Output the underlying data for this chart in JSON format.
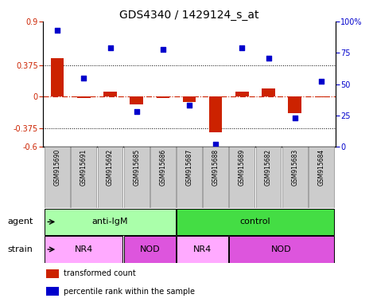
{
  "title": "GDS4340 / 1429124_s_at",
  "samples": [
    "GSM915690",
    "GSM915691",
    "GSM915692",
    "GSM915685",
    "GSM915686",
    "GSM915687",
    "GSM915688",
    "GSM915689",
    "GSM915682",
    "GSM915683",
    "GSM915684"
  ],
  "transformed_count": [
    0.46,
    -0.02,
    0.06,
    -0.09,
    -0.02,
    -0.06,
    -0.43,
    0.06,
    0.1,
    -0.2,
    -0.01
  ],
  "percentile_rank": [
    93,
    55,
    79,
    28,
    78,
    33,
    2,
    79,
    71,
    23,
    52
  ],
  "ylim_left": [
    -0.6,
    0.9
  ],
  "ylim_right": [
    0,
    100
  ],
  "yticks_left": [
    -0.6,
    -0.375,
    0,
    0.375,
    0.9
  ],
  "yticks_right": [
    0,
    25,
    50,
    75,
    100
  ],
  "hlines": [
    0.375,
    -0.375
  ],
  "bar_color": "#CC2200",
  "scatter_color": "#0000CC",
  "zero_line_color": "#CC2200",
  "agent_groups": [
    {
      "label": "anti-IgM",
      "start": 0,
      "end": 5,
      "color": "#AAFFAA"
    },
    {
      "label": "control",
      "start": 5,
      "end": 11,
      "color": "#44DD44"
    }
  ],
  "strain_groups": [
    {
      "label": "NR4",
      "start": 0,
      "end": 3,
      "color": "#FFAAFF"
    },
    {
      "label": "NOD",
      "start": 3,
      "end": 5,
      "color": "#DD55DD"
    },
    {
      "label": "NR4",
      "start": 5,
      "end": 7,
      "color": "#FFAAFF"
    },
    {
      "label": "NOD",
      "start": 7,
      "end": 11,
      "color": "#DD55DD"
    }
  ],
  "legend_items": [
    {
      "label": "transformed count",
      "color": "#CC2200"
    },
    {
      "label": "percentile rank within the sample",
      "color": "#0000CC"
    }
  ],
  "agent_label": "agent",
  "strain_label": "strain",
  "title_fontsize": 10,
  "tick_fontsize": 7,
  "label_fontsize": 8,
  "bar_width": 0.5,
  "sample_box_color": "#CCCCCC",
  "sample_box_edgecolor": "#888888"
}
